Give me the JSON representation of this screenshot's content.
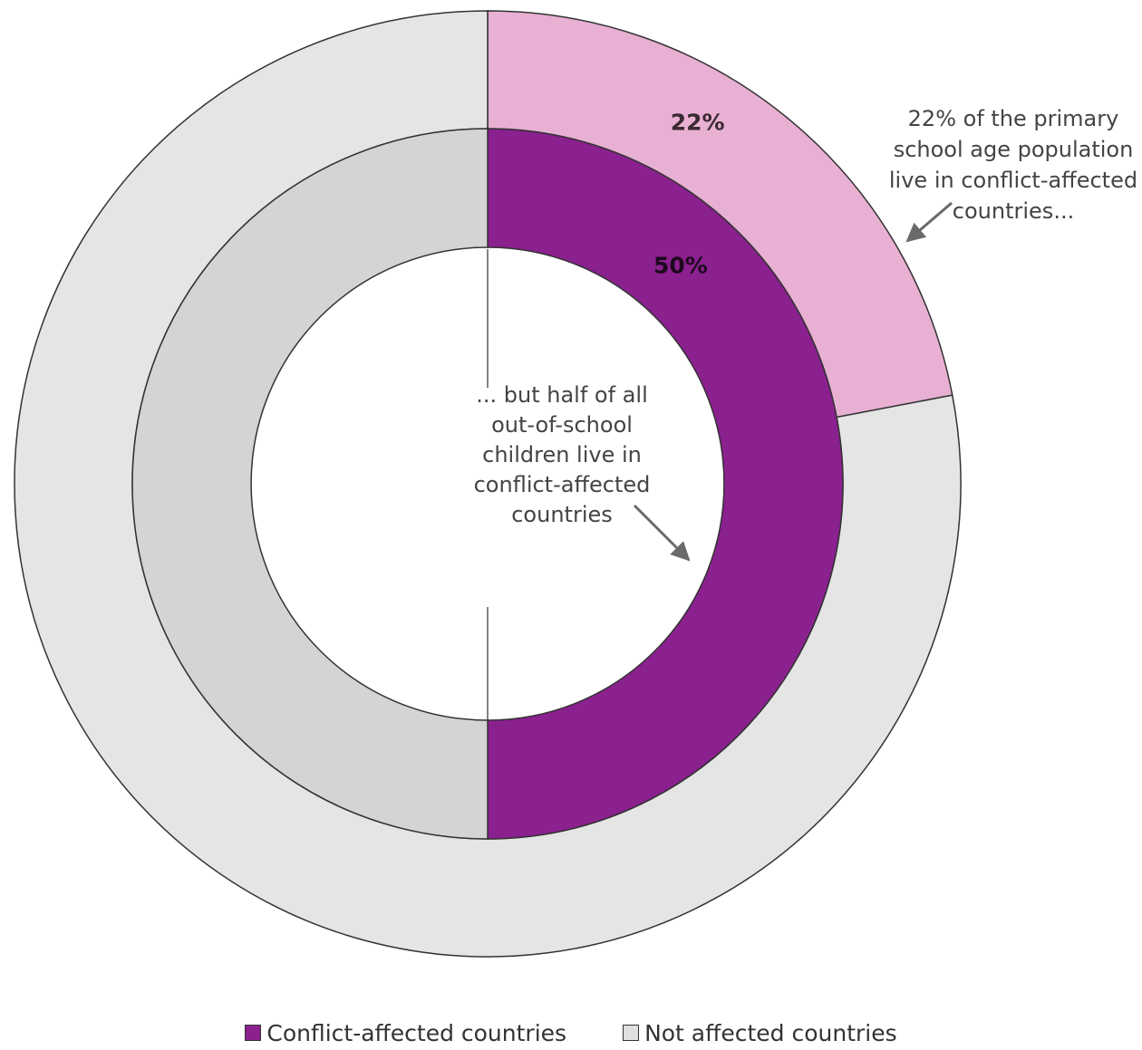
{
  "chart_data": {
    "type": "pie",
    "subtype": "nested-donut",
    "rings": [
      {
        "name": "",
        "ring": "outer",
        "slices": [
          {
            "category": "Conflict-affected countries",
            "value": 22,
            "label": "22%",
            "color": "#e8b0d2"
          },
          {
            "category": "Not affected countries",
            "value": 78,
            "label": "",
            "color": "#e4e5e4"
          }
        ]
      },
      {
        "name": "",
        "ring": "inner",
        "slices": [
          {
            "category": "Conflict-affected countries",
            "value": 50,
            "label": "50%",
            "color": "#8b208f"
          },
          {
            "category": "Not affected countries",
            "value": 50,
            "label": "",
            "color": "#d4d4d4"
          }
        ]
      }
    ],
    "annotations": [
      {
        "id": "outer-note",
        "lines": [
          "22% of the primary",
          "school age population",
          "live in conflict-affected",
          "countries..."
        ]
      },
      {
        "id": "inner-note",
        "lines": [
          "... but half of all",
          "out-of-school",
          "children live in",
          "conflict-affected",
          "countries"
        ]
      }
    ],
    "legend": {
      "position": "bottom",
      "items": [
        {
          "label": "Conflict-affected countries",
          "color": "#8b208f"
        },
        {
          "label": "Not affected countries",
          "color": "#e0e0e0"
        }
      ]
    }
  }
}
